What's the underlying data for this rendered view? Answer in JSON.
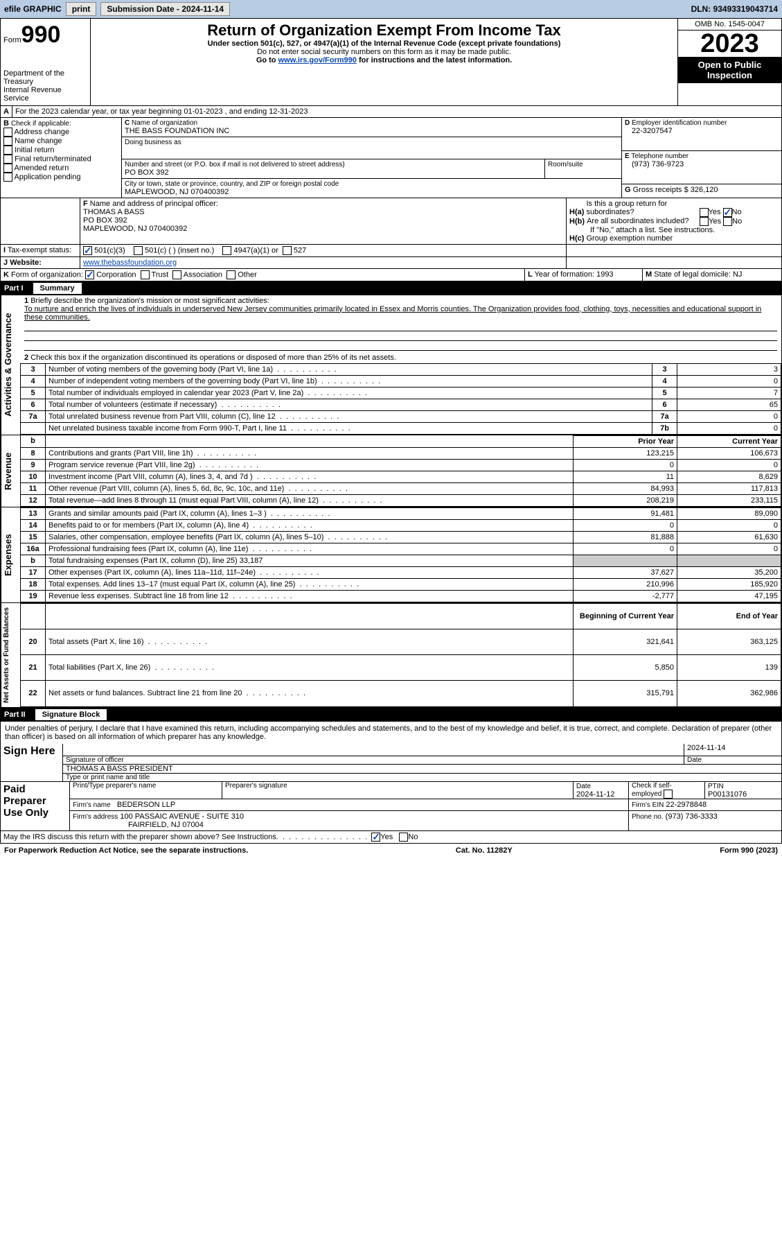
{
  "topbar": {
    "efile": "efile GRAPHIC",
    "print": "print",
    "sub_label": "Submission Date - 2024-11-14",
    "dln": "DLN: 93493319043714"
  },
  "header": {
    "form_word": "Form",
    "form_num": "990",
    "dept": "Department of the Treasury",
    "irs": "Internal Revenue Service",
    "title": "Return of Organization Exempt From Income Tax",
    "sub1": "Under section 501(c), 527, or 4947(a)(1) of the Internal Revenue Code (except private foundations)",
    "sub2": "Do not enter social security numbers on this form as it may be made public.",
    "sub3_pre": "Go to ",
    "sub3_link": "www.irs.gov/Form990",
    "sub3_post": " for instructions and the latest information.",
    "omb": "OMB No. 1545-0047",
    "year": "2023",
    "inspect": "Open to Public Inspection"
  },
  "lineA": "For the 2023 calendar year, or tax year beginning 01-01-2023    , and ending 12-31-2023",
  "boxB": {
    "label": "Check if applicable:",
    "items": [
      "Address change",
      "Name change",
      "Initial return",
      "Final return/terminated",
      "Amended return",
      "Application pending"
    ]
  },
  "boxC": {
    "name_label": "Name of organization",
    "name": "THE BASS FOUNDATION INC",
    "dba_label": "Doing business as",
    "street_label": "Number and street (or P.O. box if mail is not delivered to street address)",
    "street": "PO BOX 392",
    "room_label": "Room/suite",
    "city_label": "City or town, state or province, country, and ZIP or foreign postal code",
    "city": "MAPLEWOOD, NJ  070400392"
  },
  "boxD": {
    "label": "Employer identification number",
    "val": "22-3207547"
  },
  "boxE": {
    "label": "Telephone number",
    "val": "(973) 736-9723"
  },
  "boxG": {
    "label": "Gross receipts $",
    "val": "326,120"
  },
  "boxF": {
    "label": "Name and address of principal officer:",
    "l1": "THOMAS A BASS",
    "l2": "PO BOX 392",
    "l3": "MAPLEWOOD, NJ  070400392"
  },
  "boxH": {
    "a": "Is this a group return for subordinates?",
    "b": "Are all subordinates included?",
    "b_note": "If \"No,\" attach a list. See instructions.",
    "c": "Group exemption number"
  },
  "taxexempt": {
    "label": "Tax-exempt status:",
    "o1": "501(c)(3)",
    "o2": "501(c) (  ) (insert no.)",
    "o3": "4947(a)(1) or",
    "o4": "527"
  },
  "website": {
    "label": "Website:",
    "val": "www.thebassfoundation.org"
  },
  "lineK": {
    "label": "Form of organization:",
    "o1": "Corporation",
    "o2": "Trust",
    "o3": "Association",
    "o4": "Other"
  },
  "lineL": {
    "label": "Year of formation:",
    "val": "1993"
  },
  "lineM": {
    "label": "State of legal domicile:",
    "val": "NJ"
  },
  "part1": {
    "label": "Part I",
    "title": "Summary"
  },
  "summary": {
    "q1_label": "Briefly describe the organization's mission or most significant activities:",
    "q1_text": "To nurture and enrich the lives of individuals in underserved New Jersey communities primarily located in Essex and Morris counties. The Organization provides food, clothing, toys, necessities and educational support in these communities.",
    "q2": "Check this box       if the organization discontinued its operations or disposed of more than 25% of its net assets.",
    "rows_ag": [
      {
        "n": "3",
        "t": "Number of voting members of the governing body (Part VI, line 1a)",
        "k": "3",
        "v": "3"
      },
      {
        "n": "4",
        "t": "Number of independent voting members of the governing body (Part VI, line 1b)",
        "k": "4",
        "v": "0"
      },
      {
        "n": "5",
        "t": "Total number of individuals employed in calendar year 2023 (Part V, line 2a)",
        "k": "5",
        "v": "7"
      },
      {
        "n": "6",
        "t": "Total number of volunteers (estimate if necessary)",
        "k": "6",
        "v": "65"
      },
      {
        "n": "7a",
        "t": "Total unrelated business revenue from Part VIII, column (C), line 12",
        "k": "7a",
        "v": "0"
      },
      {
        "n": "",
        "t": "Net unrelated business taxable income from Form 990-T, Part I, line 11",
        "k": "7b",
        "v": "0"
      }
    ],
    "col_head": {
      "b": "b",
      "py": "Prior Year",
      "cy": "Current Year"
    },
    "rev_rows": [
      {
        "n": "8",
        "t": "Contributions and grants (Part VIII, line 1h)",
        "py": "123,215",
        "cy": "106,673"
      },
      {
        "n": "9",
        "t": "Program service revenue (Part VIII, line 2g)",
        "py": "0",
        "cy": "0"
      },
      {
        "n": "10",
        "t": "Investment income (Part VIII, column (A), lines 3, 4, and 7d )",
        "py": "11",
        "cy": "8,629"
      },
      {
        "n": "11",
        "t": "Other revenue (Part VIII, column (A), lines 5, 6d, 8c, 9c, 10c, and 11e)",
        "py": "84,993",
        "cy": "117,813"
      },
      {
        "n": "12",
        "t": "Total revenue—add lines 8 through 11 (must equal Part VIII, column (A), line 12)",
        "py": "208,219",
        "cy": "233,115"
      }
    ],
    "exp_rows": [
      {
        "n": "13",
        "t": "Grants and similar amounts paid (Part IX, column (A), lines 1–3 )",
        "py": "91,481",
        "cy": "89,090"
      },
      {
        "n": "14",
        "t": "Benefits paid to or for members (Part IX, column (A), line 4)",
        "py": "0",
        "cy": "0"
      },
      {
        "n": "15",
        "t": "Salaries, other compensation, employee benefits (Part IX, column (A), lines 5–10)",
        "py": "81,888",
        "cy": "61,630"
      },
      {
        "n": "16a",
        "t": "Professional fundraising fees (Part IX, column (A), line 11e)",
        "py": "0",
        "cy": "0"
      },
      {
        "n": "b",
        "t": "Total fundraising expenses (Part IX, column (D), line 25) 33,187",
        "py": "",
        "cy": "",
        "shade": true
      },
      {
        "n": "17",
        "t": "Other expenses (Part IX, column (A), lines 11a–11d, 11f–24e)",
        "py": "37,627",
        "cy": "35,200"
      },
      {
        "n": "18",
        "t": "Total expenses. Add lines 13–17 (must equal Part IX, column (A), line 25)",
        "py": "210,996",
        "cy": "185,920"
      },
      {
        "n": "19",
        "t": "Revenue less expenses. Subtract line 18 from line 12",
        "py": "-2,777",
        "cy": "47,195"
      }
    ],
    "na_head": {
      "py": "Beginning of Current Year",
      "cy": "End of Year"
    },
    "na_rows": [
      {
        "n": "20",
        "t": "Total assets (Part X, line 16)",
        "py": "321,641",
        "cy": "363,125"
      },
      {
        "n": "21",
        "t": "Total liabilities (Part X, line 26)",
        "py": "5,850",
        "cy": "139"
      },
      {
        "n": "22",
        "t": "Net assets or fund balances. Subtract line 21 from line 20",
        "py": "315,791",
        "cy": "362,986"
      }
    ],
    "side_ag": "Activities & Governance",
    "side_rev": "Revenue",
    "side_exp": "Expenses",
    "side_na": "Net Assets or Fund Balances"
  },
  "part2": {
    "label": "Part II",
    "title": "Signature Block"
  },
  "sig": {
    "perjury": "Under penalties of perjury, I declare that I have examined this return, including accompanying schedules and statements, and to the best of my knowledge and belief, it is true, correct, and complete. Declaration of preparer (other than officer) is based on all information of which preparer has any knowledge.",
    "sign_here": "Sign Here",
    "sig_officer": "Signature of officer",
    "officer_name": "THOMAS A BASS PRESIDENT",
    "type_name": "Type or print name and title",
    "date_lbl": "Date",
    "date1": "2024-11-14",
    "paid": "Paid Preparer Use Only",
    "prep_name_lbl": "Print/Type preparer's name",
    "prep_sig_lbl": "Preparer's signature",
    "date2": "2024-11-12",
    "check_self": "Check        if self-employed",
    "ptin_lbl": "PTIN",
    "ptin": "P00131076",
    "firm_name_lbl": "Firm's name",
    "firm_name": "BEDERSON LLP",
    "firm_ein_lbl": "Firm's EIN",
    "firm_ein": "22-2978848",
    "firm_addr_lbl": "Firm's address",
    "firm_addr1": "100 PASSAIC AVENUE - SUITE 310",
    "firm_addr2": "FAIRFIELD, NJ  07004",
    "phone_lbl": "Phone no.",
    "phone": "(973) 736-3333",
    "discuss": "May the IRS discuss this return with the preparer shown above? See Instructions."
  },
  "footer": {
    "l": "For Paperwork Reduction Act Notice, see the separate instructions.",
    "c": "Cat. No. 11282Y",
    "r": "Form 990 (2023)"
  },
  "yes": "Yes",
  "no": "No",
  "B": "B",
  "C": "C",
  "D": "D",
  "E": "E",
  "F": "F",
  "G": "G",
  "I": "I",
  "J": "J",
  "K": "K",
  "L": "L",
  "M": "M",
  "A": "A",
  "Ha": "H(a)",
  "Hb": "H(b)",
  "Hc": "H(c)",
  "one": "1",
  "two": "2"
}
